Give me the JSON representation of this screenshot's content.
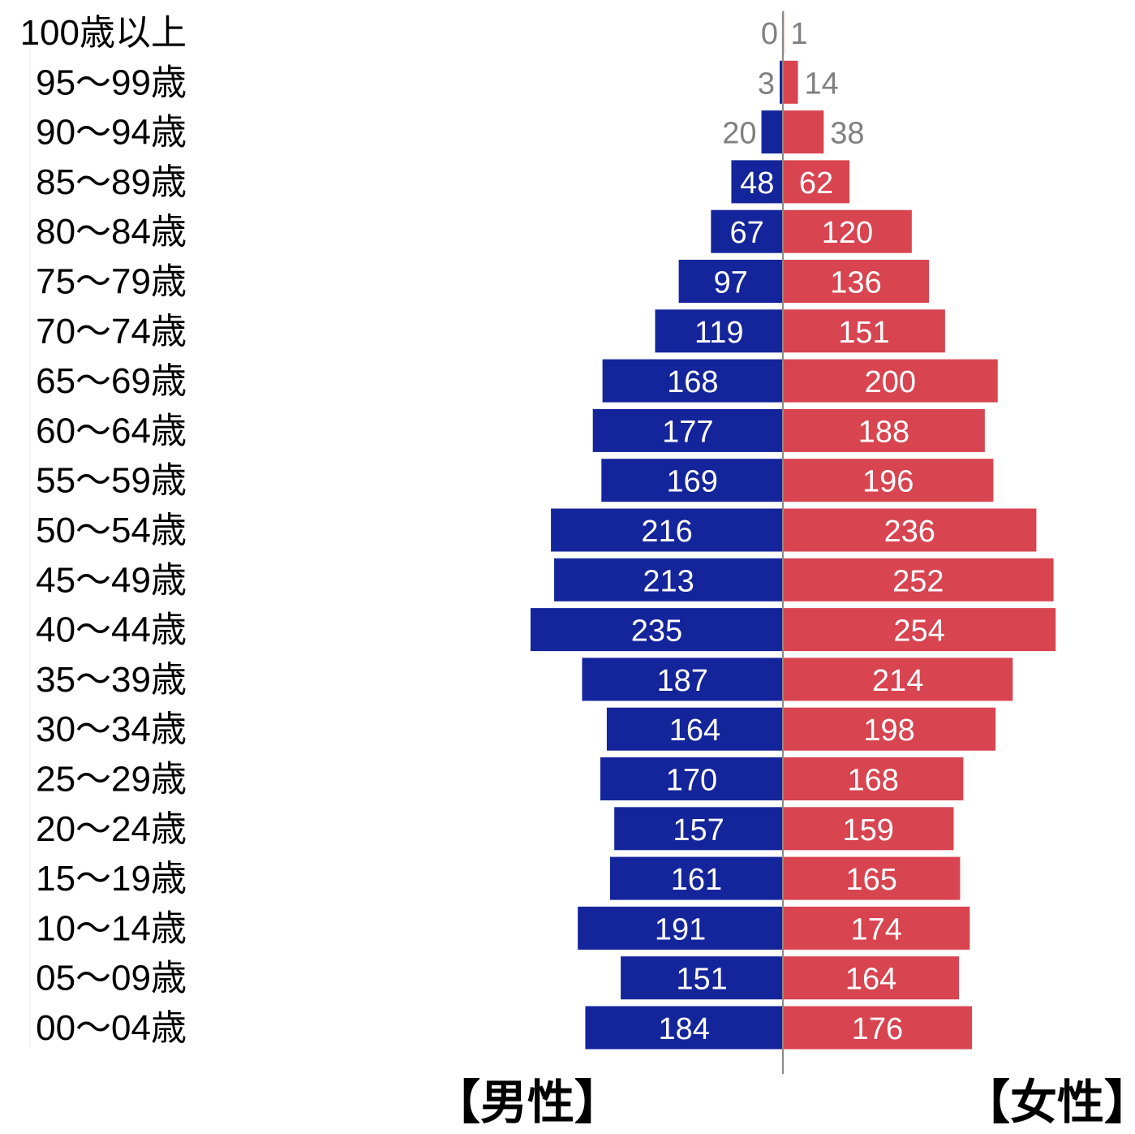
{
  "chart_data": {
    "type": "bar",
    "orientation": "horizontal",
    "layout": "population-pyramid",
    "categories": [
      "100歳以上",
      "95～99歳",
      "90～94歳",
      "85～89歳",
      "80～84歳",
      "75～79歳",
      "70～74歳",
      "65～69歳",
      "60～64歳",
      "55～59歳",
      "50～54歳",
      "45～49歳",
      "40～44歳",
      "35～39歳",
      "30～34歳",
      "25～29歳",
      "20～24歳",
      "15～19歳",
      "10～14歳",
      "05～09歳",
      "00～04歳"
    ],
    "series": [
      {
        "name": "【男性】",
        "color": "#14259b",
        "values": [
          0,
          3,
          20,
          48,
          67,
          97,
          119,
          168,
          177,
          169,
          216,
          213,
          235,
          187,
          164,
          170,
          157,
          161,
          191,
          151,
          184
        ]
      },
      {
        "name": "【女性】",
        "color": "#d84450",
        "values": [
          1,
          14,
          38,
          62,
          120,
          136,
          151,
          200,
          188,
          196,
          236,
          252,
          254,
          214,
          198,
          168,
          159,
          165,
          174,
          164,
          176
        ]
      }
    ],
    "label_colors": {
      "inside": "#ffffff",
      "outside": "#808080"
    },
    "axis_color": "#8a8a8a"
  }
}
